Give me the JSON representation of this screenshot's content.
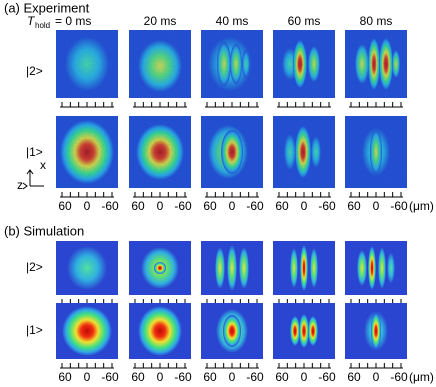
{
  "sections": [
    {
      "title": "(a) Experiment",
      "rows": [
        "|2>",
        "|1>"
      ]
    },
    {
      "title": "(b) Simulation",
      "rows": [
        "|2>",
        "|1>"
      ]
    }
  ],
  "hold_label": {
    "symbol": "T",
    "subscript": "hold"
  },
  "columns": [
    "= 0 ms",
    "20 ms",
    "40 ms",
    "60 ms",
    "80 ms"
  ],
  "axes": {
    "x": "x",
    "z": "z"
  },
  "scale_ticks": [
    "60",
    "0",
    "-60"
  ],
  "unit": "(μm)"
}
